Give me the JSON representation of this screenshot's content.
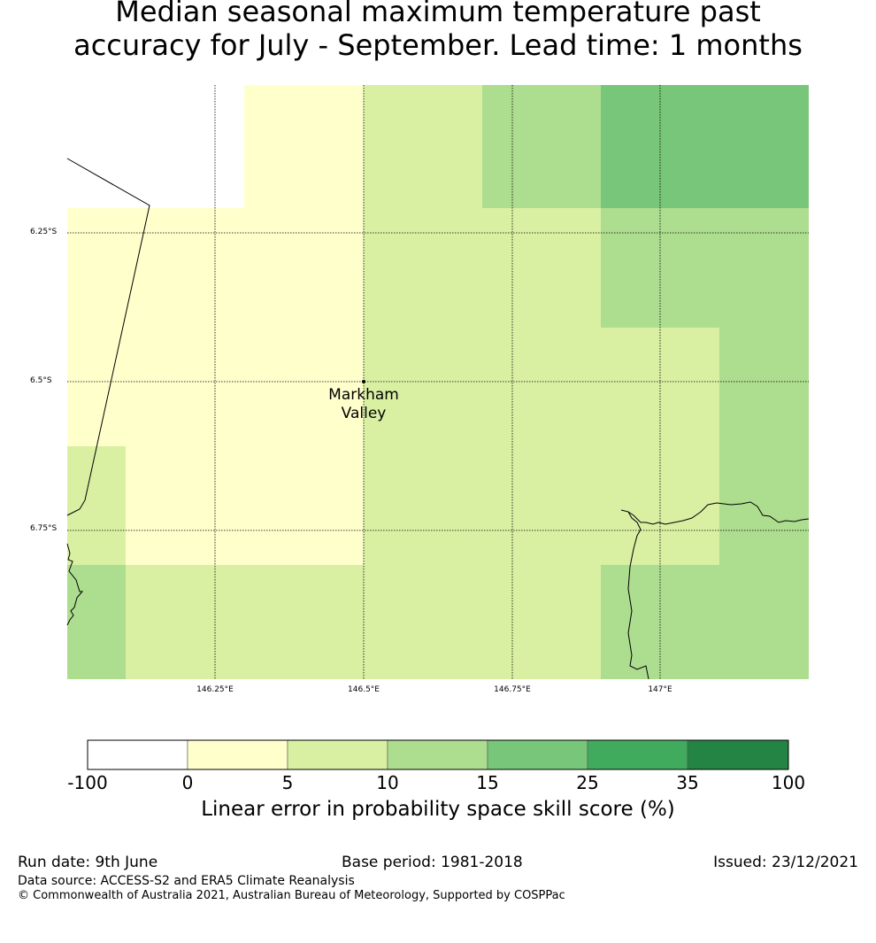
{
  "title": {
    "line1": "Median seasonal maximum temperature past",
    "line2": "accuracy for July - September. Lead time: 1 months"
  },
  "map": {
    "lat_ticks": [
      "6.25°S",
      "6.5°S",
      "6.75°S"
    ],
    "lon_ticks": [
      "146.25°E",
      "146.5°E",
      "146.75°E",
      "147°E"
    ],
    "city": {
      "line1": "Markham",
      "line2": "Valley"
    },
    "lon_range": [
      146.0,
      147.25
    ],
    "lat_range": [
      -6.0,
      -7.0
    ],
    "cells": [
      {
        "lon0": 146.0,
        "lon1": 146.25,
        "lat0": -6.0,
        "lat1": -6.2,
        "bin": -1
      },
      {
        "lon0": 146.3,
        "lon1": 146.5,
        "lat0": -6.0,
        "lat1": -6.2,
        "bin": 1
      },
      {
        "lon0": 146.0,
        "lon1": 146.5,
        "lat0": -6.2,
        "lat1": -6.8,
        "bin": 1
      },
      {
        "lon0": 146.1,
        "lon1": 146.5,
        "lat0": -6.8,
        "lat1": -6.8,
        "bin": 1
      },
      {
        "lon0": 146.0,
        "lon1": 146.1,
        "lat0": -6.6,
        "lat1": -6.8,
        "bin": 2
      },
      {
        "lon0": 146.0,
        "lon1": 146.1,
        "lat0": -6.8,
        "lat1": -7.0,
        "bin": 3
      },
      {
        "lon0": 146.1,
        "lon1": 146.5,
        "lat0": -6.8,
        "lat1": -7.0,
        "bin": 2
      },
      {
        "lon0": 146.5,
        "lon1": 146.7,
        "lat0": -6.0,
        "lat1": -6.2,
        "bin": 2
      },
      {
        "lon0": 146.7,
        "lon1": 146.9,
        "lat0": -6.0,
        "lat1": -6.2,
        "bin": 3
      },
      {
        "lon0": 146.9,
        "lon1": 147.25,
        "lat0": -6.0,
        "lat1": -6.2,
        "bin": 4
      },
      {
        "lon0": 146.5,
        "lon1": 146.9,
        "lat0": -6.2,
        "lat1": -7.0,
        "bin": 2
      },
      {
        "lon0": 146.9,
        "lon1": 147.25,
        "lat0": -6.2,
        "lat1": -6.4,
        "bin": 3
      },
      {
        "lon0": 146.9,
        "lon1": 147.1,
        "lat0": -6.4,
        "lat1": -6.8,
        "bin": 2
      },
      {
        "lon0": 147.1,
        "lon1": 147.25,
        "lat0": -6.4,
        "lat1": -7.0,
        "bin": 3
      },
      {
        "lon0": 146.9,
        "lon1": 147.1,
        "lat0": -6.8,
        "lat1": -7.0,
        "bin": 3
      }
    ]
  },
  "colorbar": {
    "labels": [
      "-100",
      "0",
      "5",
      "10",
      "15",
      "25",
      "35",
      "100"
    ],
    "colors": [
      "#ffffff",
      "#ffffcc",
      "#d9f0a3",
      "#addd8e",
      "#78c679",
      "#41ab5d",
      "#238443"
    ],
    "title": "Linear error in probability space skill score (%)"
  },
  "footer": {
    "run_date": "Run date: 9th June",
    "base_period": "Base period: 1981-2018",
    "issued": "Issued: 23/12/2021",
    "data_source": "Data source: ACCESS-S2 and ERA5 Climate Reanalysis",
    "copyright": "© Commonwealth of Australia 2021, Australian Bureau of Meteorology, Supported by COSPPac"
  }
}
